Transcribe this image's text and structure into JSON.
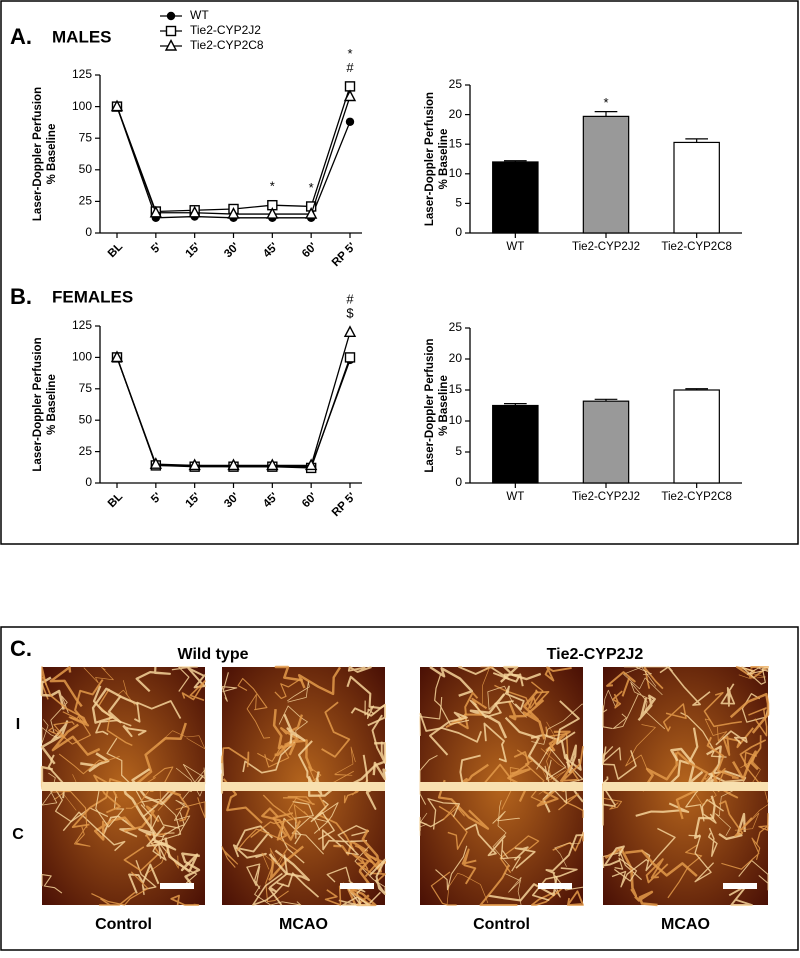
{
  "chart_data": [
    {
      "type": "line",
      "panel_label": "A.",
      "title": "MALES",
      "ylabel": [
        "Laser-Doppler Perfusion",
        "% Baseline"
      ],
      "categories": [
        "BL",
        "5'",
        "15'",
        "30'",
        "45'",
        "60'",
        "RP 5'"
      ],
      "ylim": [
        0,
        125
      ],
      "yticks": [
        0,
        25,
        50,
        75,
        100,
        125
      ],
      "legend": true,
      "series": [
        {
          "name": "WT",
          "color": "#000000",
          "marker": "circle",
          "values": [
            100,
            12,
            13,
            12,
            12,
            12,
            88
          ]
        },
        {
          "name": "Tie2-CYP2J2",
          "color": "#000000",
          "marker": "square",
          "values": [
            100,
            17,
            18,
            19,
            22,
            21,
            116
          ]
        },
        {
          "name": "Tie2-CYP2C8",
          "color": "#000000",
          "marker": "triangle",
          "values": [
            100,
            16,
            16,
            15,
            15,
            15,
            108
          ]
        }
      ],
      "annotations": [
        {
          "text": "*",
          "category": "45'"
        },
        {
          "text": "*",
          "category": "60'"
        },
        {
          "text": "#",
          "category": "RP 5'"
        },
        {
          "text": "*",
          "category": "RP 5'"
        }
      ]
    },
    {
      "type": "bar",
      "ylabel": [
        "Laser-Doppler Perfusion",
        "% Baseline"
      ],
      "categories": [
        "WT",
        "Tie2-CYP2J2",
        "Tie2-CYP2C8"
      ],
      "values": [
        12,
        19.7,
        15.3
      ],
      "errors": [
        0.2,
        0.8,
        0.6
      ],
      "colors": [
        "#000000",
        "#999999",
        "#ffffff"
      ],
      "ylim": [
        0,
        25
      ],
      "yticks": [
        0,
        5,
        10,
        15,
        20,
        25
      ],
      "annotations": [
        {
          "text": "*",
          "category": "Tie2-CYP2J2"
        }
      ]
    },
    {
      "type": "line",
      "panel_label": "B.",
      "title": "FEMALES",
      "ylabel": [
        "Laser-Doppler Perfusion",
        "% Baseline"
      ],
      "categories": [
        "BL",
        "5'",
        "15'",
        "30'",
        "45'",
        "60'",
        "RP 5'"
      ],
      "ylim": [
        0,
        125
      ],
      "yticks": [
        0,
        25,
        50,
        75,
        100,
        125
      ],
      "legend": false,
      "series": [
        {
          "name": "WT",
          "color": "#000000",
          "marker": "circle",
          "values": [
            100,
            14,
            14,
            13,
            13,
            13,
            98
          ]
        },
        {
          "name": "Tie2-CYP2J2",
          "color": "#000000",
          "marker": "square",
          "values": [
            100,
            14,
            13,
            13,
            13,
            12,
            100
          ]
        },
        {
          "name": "Tie2-CYP2C8",
          "color": "#000000",
          "marker": "triangle",
          "values": [
            100,
            15,
            14,
            14,
            14,
            14,
            120
          ]
        }
      ],
      "annotations": [
        {
          "text": "$",
          "category": "RP 5'"
        },
        {
          "text": "#",
          "category": "RP 5'"
        }
      ]
    },
    {
      "type": "bar",
      "ylabel": [
        "Laser-Doppler Perfusion",
        "% Baseline"
      ],
      "categories": [
        "WT",
        "Tie2-CYP2J2",
        "Tie2-CYP2C8"
      ],
      "values": [
        12.5,
        13.2,
        15.0
      ],
      "errors": [
        0.3,
        0.3,
        0.2
      ],
      "colors": [
        "#000000",
        "#999999",
        "#ffffff"
      ],
      "ylim": [
        0,
        25
      ],
      "yticks": [
        0,
        5,
        10,
        15,
        20,
        25
      ],
      "annotations": []
    }
  ],
  "panel_c": {
    "label": "C.",
    "groups": [
      "Wild type",
      "Tie2-CYP2J2"
    ],
    "rows": [
      "I",
      "C"
    ],
    "conditions": [
      "Control",
      "MCAO",
      "Control",
      "MCAO"
    ]
  }
}
